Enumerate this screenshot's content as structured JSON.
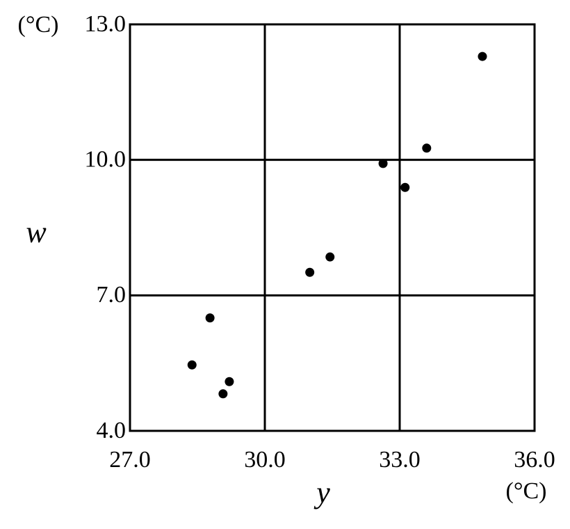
{
  "chart_data": {
    "type": "scatter",
    "x_label": "y",
    "y_label": "w",
    "x_unit": "(°C)",
    "y_unit": "(°C)",
    "x": [
      34.84,
      33.6,
      32.63,
      33.12,
      31.45,
      31.0,
      28.78,
      28.38,
      29.21,
      29.07
    ],
    "values": [
      12.29,
      10.26,
      9.92,
      9.39,
      7.85,
      7.51,
      6.5,
      5.46,
      5.09,
      4.82
    ],
    "color": "#000000",
    "xlim": [
      27,
      36
    ],
    "ylim": [
      4,
      13
    ],
    "xticks": [
      {
        "value": 27,
        "label": "27.0"
      },
      {
        "value": 30,
        "label": "30.0"
      },
      {
        "value": 33,
        "label": "33.0"
      },
      {
        "value": 36,
        "label": "36.0"
      }
    ],
    "yticks": [
      {
        "value": 4,
        "label": "4.0"
      },
      {
        "value": 7,
        "label": "7.0"
      },
      {
        "value": 10,
        "label": "10.0"
      },
      {
        "value": 13,
        "label": "13.0"
      }
    ],
    "grid": true
  }
}
